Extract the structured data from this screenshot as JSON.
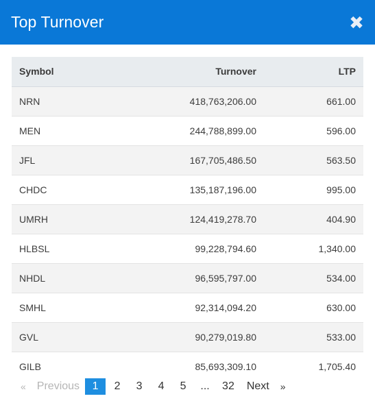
{
  "modal": {
    "title": "Top Turnover",
    "close_icon": "close-icon",
    "close_glyph": "✖"
  },
  "table": {
    "headers": {
      "symbol": "Symbol",
      "turnover": "Turnover",
      "ltp": "LTP"
    },
    "rows": [
      {
        "symbol": "NRN",
        "turnover": "418,763,206.00",
        "ltp": "661.00"
      },
      {
        "symbol": "MEN",
        "turnover": "244,788,899.00",
        "ltp": "596.00"
      },
      {
        "symbol": "JFL",
        "turnover": "167,705,486.50",
        "ltp": "563.50"
      },
      {
        "symbol": "CHDC",
        "turnover": "135,187,196.00",
        "ltp": "995.00"
      },
      {
        "symbol": "UMRH",
        "turnover": "124,419,278.70",
        "ltp": "404.90"
      },
      {
        "symbol": "HLBSL",
        "turnover": "99,228,794.60",
        "ltp": "1,340.00"
      },
      {
        "symbol": "NHDL",
        "turnover": "96,595,797.00",
        "ltp": "534.00"
      },
      {
        "symbol": "SMHL",
        "turnover": "92,314,094.20",
        "ltp": "630.00"
      },
      {
        "symbol": "GVL",
        "turnover": "90,279,019.80",
        "ltp": "533.00"
      },
      {
        "symbol": "GILB",
        "turnover": "85,693,309.10",
        "ltp": "1,705.40"
      }
    ]
  },
  "pagination": {
    "prev_arrow": "«",
    "previous": "Previous",
    "pages": [
      "1",
      "2",
      "3",
      "4",
      "5"
    ],
    "ellipsis": "...",
    "last_page": "32",
    "next": "Next",
    "next_arrow": "»",
    "current": "1"
  },
  "colors": {
    "header_bg": "#0a78d7",
    "active_page": "#1e8ee0"
  }
}
